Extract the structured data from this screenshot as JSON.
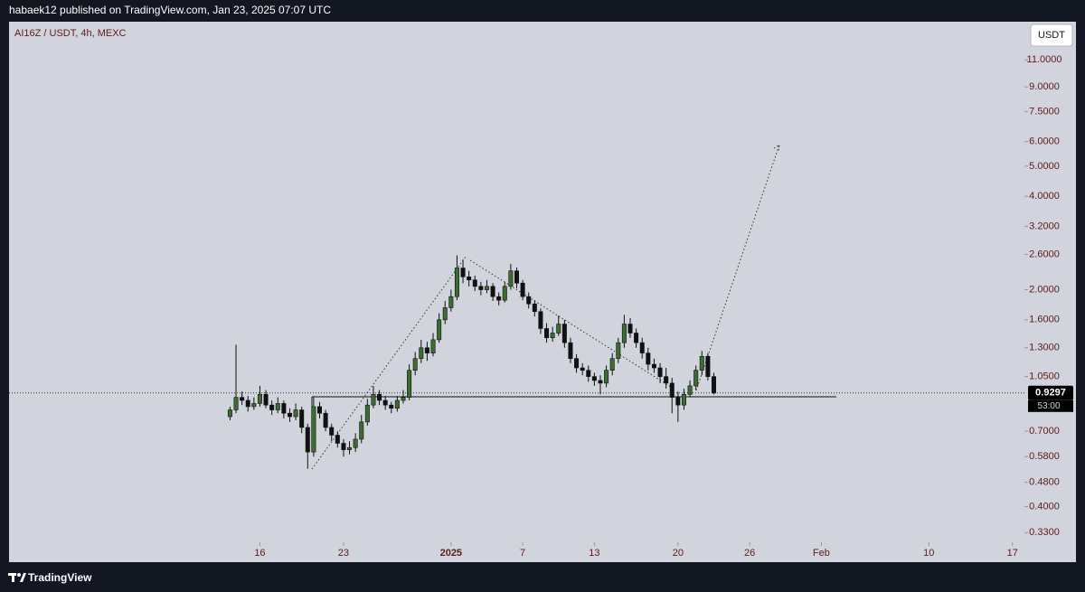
{
  "header": {
    "publisher": "habaek12 published on TradingView.com, Jan 23, 2025 07:07 UTC"
  },
  "footer": {
    "brand": "TradingView"
  },
  "chart_data": {
    "type": "candlestick",
    "title": "AI16Z / USDT, 4h, MEXC",
    "currency": "USDT",
    "countdown": "53:00",
    "up_color": "#3d6b30",
    "down_color": "#111111",
    "log_scale": true,
    "xlim": [
      -5,
      80
    ],
    "xticks": [
      16,
      23,
      {
        "value": 32,
        "label": "2025"
      },
      {
        "value": 38,
        "label": "7"
      },
      {
        "value": 44,
        "label": "13"
      },
      {
        "value": 51,
        "label": "20"
      },
      {
        "value": 57,
        "label": "26"
      },
      {
        "value": 63,
        "label": "Feb"
      },
      {
        "value": 72,
        "label": "10"
      },
      {
        "value": 79,
        "label": "17"
      }
    ],
    "ylim": [
      0.265,
      14.8
    ],
    "yticks": [
      {
        "value": 11,
        "label": "11.0000"
      },
      {
        "value": 9,
        "label": "9.0000"
      },
      {
        "value": 7.5,
        "label": "7.5000"
      },
      {
        "value": 6,
        "label": "6.0000"
      },
      {
        "value": 5,
        "label": "5.0000"
      },
      {
        "value": 4,
        "label": "4.0000"
      },
      {
        "value": 3.2,
        "label": "3.2000"
      },
      {
        "value": 2.6,
        "label": "2.6000"
      },
      {
        "value": 2,
        "label": "2.0000"
      },
      {
        "value": 1.6,
        "label": "1.6000"
      },
      {
        "value": 1.3,
        "label": "1.3000"
      },
      {
        "value": 1.05,
        "label": "1.0500"
      },
      {
        "value": 0.7,
        "label": "0.7000"
      },
      {
        "value": 0.58,
        "label": "0.5800"
      },
      {
        "value": 0.48,
        "label": "0.4800"
      },
      {
        "value": 0.4,
        "label": "0.4000"
      },
      {
        "value": 0.33,
        "label": "0.3300"
      }
    ],
    "x": [
      13.5,
      14,
      14.5,
      15,
      15.5,
      16,
      16.5,
      17,
      17.5,
      18,
      18.5,
      19,
      19.5,
      20,
      20.5,
      21,
      21.5,
      22,
      22.5,
      23,
      23.5,
      24,
      24.5,
      25,
      25.5,
      26,
      26.5,
      27,
      27.5,
      28,
      28.5,
      29,
      29.5,
      30,
      30.5,
      31,
      31.5,
      32,
      32.5,
      33,
      33.5,
      34,
      34.5,
      35,
      35.5,
      36,
      36.5,
      37,
      37.5,
      38,
      38.5,
      39,
      39.5,
      40,
      40.5,
      41,
      41.5,
      42,
      42.5,
      43,
      43.5,
      44,
      44.5,
      45,
      45.5,
      46,
      46.5,
      47,
      47.5,
      48,
      48.5,
      49,
      49.5,
      50,
      50.5,
      51,
      51.5,
      52,
      52.5,
      53,
      53.5,
      54
    ],
    "open": [
      0.78,
      0.82,
      0.9,
      0.88,
      0.84,
      0.86,
      0.92,
      0.85,
      0.82,
      0.86,
      0.8,
      0.78,
      0.82,
      0.72,
      0.6,
      0.84,
      0.8,
      0.72,
      0.68,
      0.64,
      0.61,
      0.62,
      0.66,
      0.75,
      0.85,
      0.92,
      0.88,
      0.85,
      0.83,
      0.88,
      0.9,
      1.1,
      1.2,
      1.3,
      1.25,
      1.38,
      1.6,
      1.75,
      1.9,
      2.35,
      2.2,
      2.15,
      2.05,
      2,
      2.05,
      1.9,
      1.85,
      2.05,
      2.3,
      2.1,
      1.9,
      1.8,
      1.7,
      1.5,
      1.4,
      1.45,
      1.55,
      1.35,
      1.2,
      1.12,
      1.1,
      1.05,
      1.02,
      1,
      1.1,
      1.2,
      1.35,
      1.55,
      1.45,
      1.35,
      1.25,
      1.15,
      1.12,
      1.05,
      1,
      0.9,
      0.85,
      0.92,
      0.98,
      1.1,
      1.22,
      1.05
    ],
    "high": [
      0.84,
      1.33,
      0.94,
      0.91,
      0.9,
      0.98,
      0.95,
      0.88,
      0.9,
      0.88,
      0.83,
      0.86,
      0.84,
      0.74,
      0.9,
      0.87,
      0.82,
      0.74,
      0.7,
      0.66,
      0.65,
      0.69,
      0.79,
      0.89,
      0.98,
      0.95,
      0.91,
      0.87,
      0.91,
      0.95,
      1.15,
      1.26,
      1.38,
      1.36,
      1.45,
      1.68,
      1.84,
      2,
      2.58,
      2.5,
      2.3,
      2.22,
      2.12,
      2.15,
      2.1,
      1.96,
      2.12,
      2.42,
      2.36,
      2.15,
      1.96,
      1.85,
      1.74,
      1.56,
      1.52,
      1.65,
      1.6,
      1.4,
      1.24,
      1.16,
      1.14,
      1.08,
      1.06,
      1.14,
      1.25,
      1.4,
      1.66,
      1.62,
      1.5,
      1.4,
      1.3,
      1.2,
      1.16,
      1.12,
      1.04,
      0.94,
      0.96,
      1.02,
      1.14,
      1.27,
      1.25,
      1.08
    ],
    "low": [
      0.76,
      0.8,
      0.85,
      0.81,
      0.82,
      0.84,
      0.83,
      0.79,
      0.8,
      0.77,
      0.75,
      0.76,
      0.69,
      0.53,
      0.58,
      0.77,
      0.7,
      0.65,
      0.62,
      0.58,
      0.59,
      0.6,
      0.64,
      0.73,
      0.83,
      0.85,
      0.82,
      0.8,
      0.81,
      0.86,
      0.88,
      1.06,
      1.16,
      1.18,
      1.22,
      1.35,
      1.55,
      1.7,
      1.85,
      2.1,
      2.05,
      1.98,
      1.92,
      1.95,
      1.84,
      1.78,
      1.82,
      2,
      2.02,
      1.85,
      1.74,
      1.64,
      1.44,
      1.35,
      1.36,
      1.42,
      1.3,
      1.16,
      1.08,
      1.06,
      1.01,
      0.98,
      0.92,
      0.97,
      1.06,
      1.16,
      1.3,
      1.4,
      1.3,
      1.2,
      1.1,
      1.08,
      1,
      0.96,
      0.8,
      0.75,
      0.82,
      0.9,
      0.95,
      1.06,
      1.02,
      0.92
    ],
    "close": [
      0.82,
      0.9,
      0.88,
      0.84,
      0.86,
      0.92,
      0.85,
      0.82,
      0.86,
      0.8,
      0.78,
      0.82,
      0.72,
      0.6,
      0.84,
      0.8,
      0.72,
      0.68,
      0.64,
      0.61,
      0.62,
      0.66,
      0.75,
      0.85,
      0.92,
      0.88,
      0.85,
      0.83,
      0.88,
      0.9,
      1.1,
      1.2,
      1.3,
      1.25,
      1.38,
      1.6,
      1.75,
      1.9,
      2.35,
      2.2,
      2.15,
      2.05,
      2,
      2.05,
      1.9,
      1.85,
      2.05,
      2.3,
      2.1,
      1.9,
      1.8,
      1.7,
      1.5,
      1.4,
      1.45,
      1.55,
      1.35,
      1.2,
      1.12,
      1.1,
      1.05,
      1.02,
      1,
      1.1,
      1.2,
      1.35,
      1.55,
      1.45,
      1.35,
      1.25,
      1.15,
      1.12,
      1.05,
      1,
      0.9,
      0.85,
      0.92,
      0.98,
      1.1,
      1.22,
      1.05,
      0.9297
    ]
  }
}
